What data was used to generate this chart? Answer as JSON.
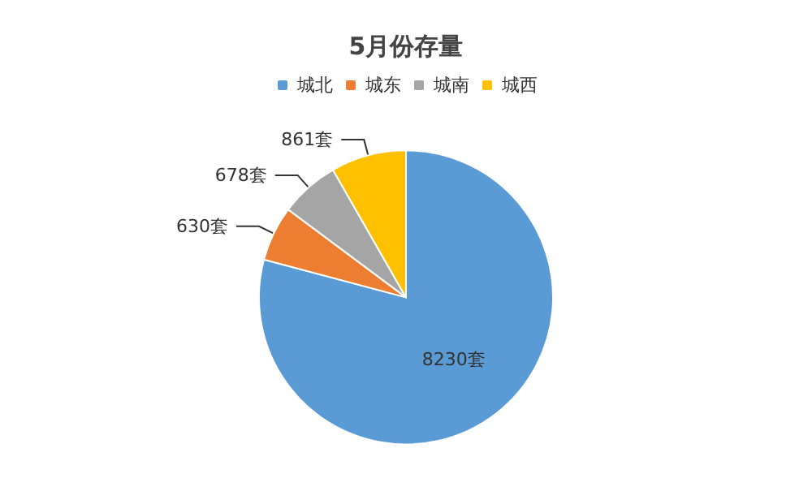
{
  "chart_data": {
    "type": "pie",
    "title": "5月份存量",
    "categories": [
      "城北",
      "城东",
      "城南",
      "城西"
    ],
    "values": [
      8230,
      630,
      678,
      861
    ],
    "colors": [
      "#5b9bd5",
      "#ed7d31",
      "#a5a5a5",
      "#ffc000"
    ],
    "value_labels": [
      "8230套",
      "630套",
      "678套",
      "861套"
    ],
    "legend": "top"
  }
}
